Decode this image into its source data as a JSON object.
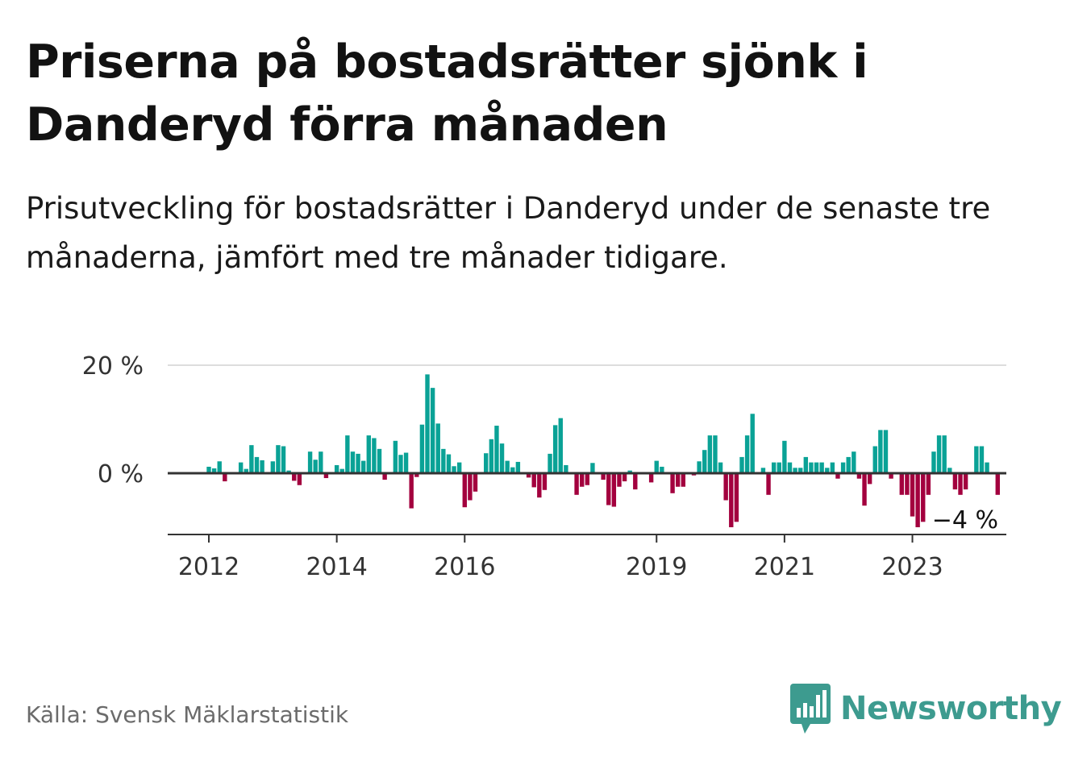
{
  "header": {
    "title": "Priserna på bostadsrätter sjönk i Danderyd förra månaden",
    "subtitle": "Prisutveckling för bostadsrätter i Danderyd under de senaste tre månaderna, jämfört med tre månader tidigare."
  },
  "footer": {
    "source": "Källa: Svensk Mäklarstatistik",
    "brand": "Newsworthy",
    "brand_icon": "newsworthy-logo-icon"
  },
  "colors": {
    "positive": "#0aa296",
    "negative": "#a3003e",
    "grid": "#dddddd",
    "axis": "#333333"
  },
  "chart_data": {
    "type": "bar",
    "title": "Priserna på bostadsrätter sjönk i Danderyd förra månaden",
    "xlabel": "",
    "ylabel": "",
    "unit": "%",
    "ylim": [
      -11,
      20
    ],
    "y_ticks": [
      {
        "value": 0,
        "label": "0 %"
      },
      {
        "value": 20,
        "label": "20 %"
      }
    ],
    "x_ticks": [
      {
        "index": 0,
        "label": "2012"
      },
      {
        "index": 24,
        "label": "2014"
      },
      {
        "index": 48,
        "label": "2016"
      },
      {
        "index": 84,
        "label": "2019"
      },
      {
        "index": 108,
        "label": "2021"
      },
      {
        "index": 132,
        "label": "2023"
      }
    ],
    "start": "2012-01",
    "end_label": "−4 %",
    "values": [
      1.2,
      0.9,
      2.2,
      -1.5,
      0,
      0,
      2,
      0.8,
      5.2,
      3,
      2.4,
      0,
      2.2,
      5.2,
      5,
      0.5,
      -1.4,
      -2.2,
      0,
      4,
      2.5,
      4,
      -0.9,
      0,
      1.5,
      0.8,
      7,
      4,
      3.6,
      2.3,
      7,
      6.5,
      4.5,
      -1.2,
      0,
      6,
      3.4,
      3.8,
      -6.5,
      -0.7,
      9,
      18.3,
      15.8,
      9.2,
      4.5,
      3.5,
      1.3,
      2,
      -6.3,
      -5,
      -3.4,
      0,
      3.7,
      6.3,
      8.8,
      5.5,
      2.3,
      1.1,
      2.1,
      0,
      -0.8,
      -2.6,
      -4.5,
      -3.1,
      3.6,
      8.9,
      10.2,
      1.5,
      0,
      -4,
      -2.5,
      -2.2,
      1.9,
      0,
      -1.2,
      -5.9,
      -6.2,
      -2.5,
      -1.5,
      0.5,
      -3,
      0,
      0,
      -1.7,
      2.3,
      1.2,
      0,
      -3.7,
      -2.5,
      -2.5,
      0,
      -0.4,
      2.2,
      4.3,
      7,
      7,
      2,
      -5,
      -10,
      -9,
      3,
      7,
      11,
      0,
      1,
      -4,
      2,
      2,
      6,
      2,
      1,
      1,
      3,
      2,
      2,
      2,
      1,
      2,
      -1,
      2,
      3,
      4,
      -1,
      -6,
      -2,
      5,
      8,
      8,
      -1,
      0,
      -4,
      -4,
      -8,
      -10,
      -9,
      -4,
      4,
      7,
      7,
      1,
      -3,
      -4,
      -3,
      0,
      5,
      5,
      2,
      0,
      -4
    ]
  }
}
